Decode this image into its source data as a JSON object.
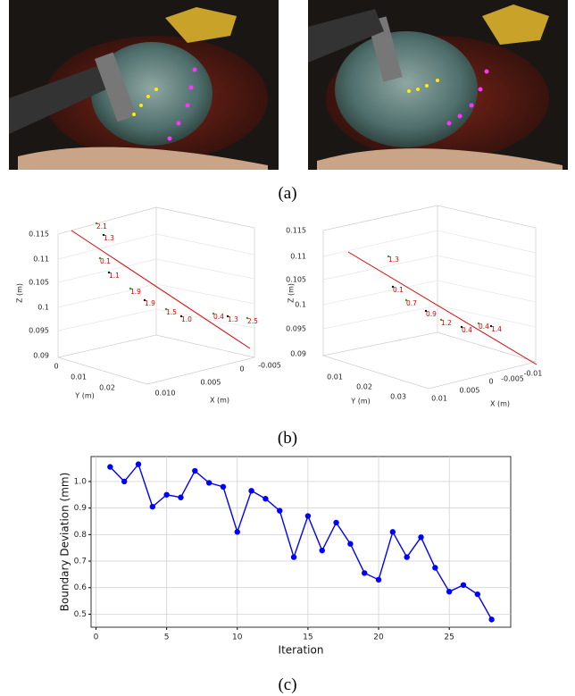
{
  "captions": [
    "(a)",
    "(b)",
    "(c)"
  ],
  "chart_data": [
    {
      "type": "scatter3d",
      "xlabel": "X (m)",
      "ylabel": "Y (m)",
      "zlabel": "Z (m)",
      "zticks": [
        "0.115",
        "0.11",
        "0.105",
        "0.1",
        "0.095",
        "0.09"
      ],
      "yticks": [
        "0",
        "0.01",
        "0.02"
      ],
      "xticks": [
        "0.010",
        "0.005",
        "0",
        "-0.005"
      ],
      "point_labels": [
        "2.1",
        "1.3",
        "0.1",
        "1.1",
        "1.9",
        "1.9",
        "1.5",
        "1.0",
        "0.4",
        "1.3",
        "2.5"
      ],
      "line_color": "#e00000"
    },
    {
      "type": "scatter3d",
      "xlabel": "X (m)",
      "ylabel": "Y (m)",
      "zlabel": "Z (m)",
      "zticks": [
        "0.115",
        "0.11",
        "0.105",
        "0.1",
        "0.095",
        "0.09"
      ],
      "yticks": [
        "0.01",
        "0.02",
        "0.03"
      ],
      "xticks": [
        "0.01",
        "0.005",
        "0",
        "-0.005",
        "-0.01"
      ],
      "point_labels": [
        "1.3",
        "0.1",
        "0.7",
        "0.9",
        "1.2",
        "0.4",
        "0.4",
        "1.4"
      ],
      "line_color": "#e00000"
    },
    {
      "type": "line",
      "xlabel": "Iteration",
      "ylabel": "Boundary Deviation (mm)",
      "x": [
        1,
        2,
        3,
        4,
        5,
        6,
        7,
        8,
        9,
        10,
        11,
        12,
        13,
        14,
        15,
        16,
        17,
        18,
        19,
        20,
        21,
        22,
        23,
        24,
        25,
        26,
        27,
        28
      ],
      "values": [
        1.055,
        1.0,
        1.065,
        0.905,
        0.95,
        0.94,
        1.04,
        0.995,
        0.98,
        0.81,
        0.965,
        0.935,
        0.89,
        0.715,
        0.87,
        0.74,
        0.845,
        0.765,
        0.655,
        0.63,
        0.81,
        0.715,
        0.79,
        0.675,
        0.585,
        0.61,
        0.575,
        0.48
      ],
      "color": "#0000ff",
      "xlim": [
        -0.35,
        29.35
      ],
      "ylim": [
        0.451,
        1.094
      ],
      "xticks": [
        0,
        5,
        10,
        15,
        20,
        25
      ],
      "yticks": [
        0.5,
        0.6,
        0.7,
        0.8,
        0.9,
        {
          "value": 1,
          "label": "1.0"
        }
      ],
      "grid": true
    }
  ]
}
